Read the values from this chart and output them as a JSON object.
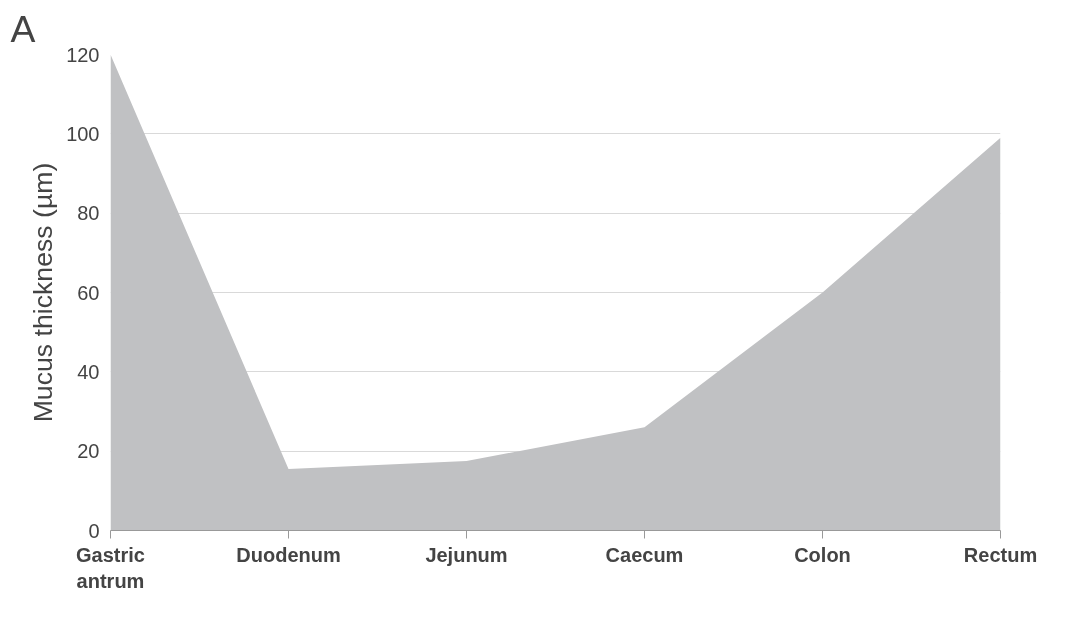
{
  "chart_data": {
    "type": "area",
    "ylabel": "Mucus thickness (µm)",
    "annotations": [
      "A"
    ],
    "categories": [
      "Gastric antrum",
      "Duodenum",
      "Jejunum",
      "Caecum",
      "Colon",
      "Rectum"
    ],
    "series": [
      {
        "color": "#c0c1c3",
        "values": [
          120,
          15.5,
          17.5,
          26,
          60,
          99
        ]
      }
    ],
    "ylim": [
      0,
      120
    ],
    "yticks": [
      0,
      20,
      40,
      60,
      80,
      100,
      120
    ],
    "grid": "y"
  }
}
